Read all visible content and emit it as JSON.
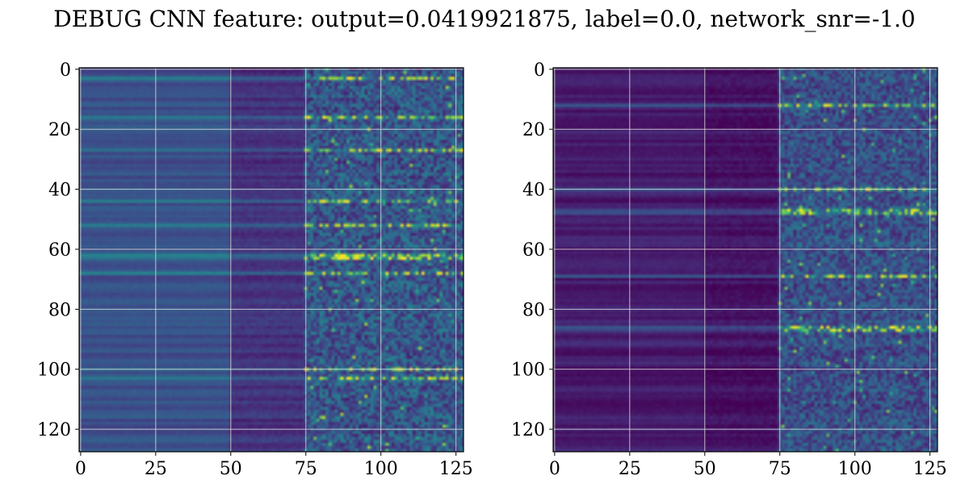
{
  "figure": {
    "suptitle": "DEBUG CNN feature: output=0.0419921875, label=0.0, network_snr=-1.0"
  },
  "chart_data": [
    {
      "type": "heatmap",
      "colormap": "viridis",
      "rows": 128,
      "cols": 128,
      "xlim": [
        0,
        127
      ],
      "ylim": [
        127,
        0
      ],
      "x_ticks": [
        0,
        25,
        50,
        75,
        100,
        125
      ],
      "y_ticks": [
        0,
        20,
        40,
        60,
        80,
        100,
        120
      ],
      "x_tick_labels": [
        "0",
        "25",
        "50",
        "75",
        "100",
        "125"
      ],
      "y_tick_labels": [
        "0",
        "20",
        "40",
        "60",
        "80",
        "100",
        "120"
      ],
      "grid": true,
      "description_values": {
        "low_x_intensity": 0.25,
        "mid_x_intensity": 0.15,
        "high_x_noise": 0.35,
        "hot_rows": [
          3,
          16,
          27,
          44,
          52,
          62,
          63,
          68,
          100,
          103
        ]
      }
    },
    {
      "type": "heatmap",
      "colormap": "viridis",
      "rows": 128,
      "cols": 128,
      "xlim": [
        0,
        127
      ],
      "ylim": [
        127,
        0
      ],
      "x_ticks": [
        0,
        25,
        50,
        75,
        100,
        125
      ],
      "y_ticks": [
        0,
        20,
        40,
        60,
        80,
        100,
        120
      ],
      "x_tick_labels": [
        "0",
        "25",
        "50",
        "75",
        "100",
        "125"
      ],
      "y_tick_labels": [
        "0",
        "20",
        "40",
        "60",
        "80",
        "100",
        "120"
      ],
      "grid": true,
      "description_values": {
        "low_x_intensity": 0.08,
        "mid_x_intensity": 0.05,
        "high_x_noise": 0.3,
        "hot_rows": [
          12,
          40,
          47,
          48,
          69,
          86,
          87
        ]
      }
    }
  ]
}
